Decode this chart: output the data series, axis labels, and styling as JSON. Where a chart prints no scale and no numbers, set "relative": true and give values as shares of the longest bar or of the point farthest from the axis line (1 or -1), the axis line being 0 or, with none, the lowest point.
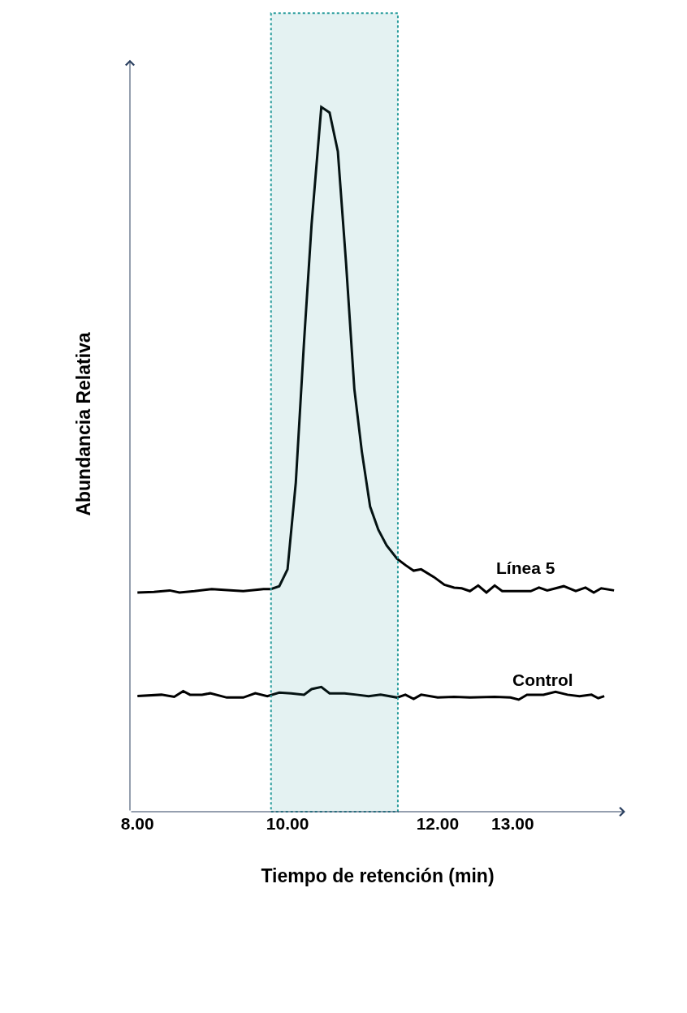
{
  "chart_data": {
    "type": "line",
    "relative": true,
    "xlabel": "Tiempo de retención (min)",
    "ylabel": "Abundancia Relativa",
    "xlim": [
      7.9,
      14.5
    ],
    "xticks": [
      {
        "value": 8,
        "label": "8.00"
      },
      {
        "value": 10,
        "label": "10.00"
      },
      {
        "value": 12,
        "label": "12.00"
      },
      {
        "value": 13,
        "label": "13.00"
      }
    ],
    "series": [
      {
        "name": "Línea 5",
        "color": "#000000",
        "x": [
          8.0,
          8.22,
          8.43,
          8.56,
          8.76,
          8.99,
          9.28,
          9.41,
          9.68,
          9.78,
          9.89,
          10.0,
          10.11,
          10.22,
          10.32,
          10.45,
          10.56,
          10.67,
          10.78,
          10.89,
          10.99,
          11.1,
          11.21,
          11.32,
          11.46,
          11.57,
          11.68,
          11.78,
          11.95,
          12.09,
          12.22,
          12.32,
          12.43,
          12.54,
          12.65,
          12.76,
          12.86,
          13.08,
          13.24,
          13.35,
          13.46,
          13.68,
          13.84,
          13.97,
          14.08,
          14.18,
          14.35
        ],
        "values": [
          0.311,
          0.312,
          0.314,
          0.311,
          0.313,
          0.316,
          0.314,
          0.313,
          0.316,
          0.316,
          0.32,
          0.344,
          0.467,
          0.667,
          0.833,
          1,
          0.992,
          0.937,
          0.778,
          0.6,
          0.511,
          0.433,
          0.4,
          0.378,
          0.359,
          0.35,
          0.342,
          0.344,
          0.333,
          0.322,
          0.318,
          0.317,
          0.313,
          0.321,
          0.311,
          0.321,
          0.313,
          0.313,
          0.313,
          0.318,
          0.314,
          0.32,
          0.313,
          0.318,
          0.311,
          0.317,
          0.314
        ]
      },
      {
        "name": "Control",
        "color": "#000000",
        "x": [
          8.0,
          8.32,
          8.49,
          8.61,
          8.7,
          8.86,
          8.97,
          9.19,
          9.41,
          9.57,
          9.73,
          9.89,
          10.05,
          10.22,
          10.32,
          10.45,
          10.56,
          10.76,
          10.92,
          11.08,
          11.24,
          11.46,
          11.57,
          11.68,
          11.78,
          12.0,
          12.22,
          12.43,
          12.76,
          12.97,
          13.08,
          13.19,
          13.41,
          13.57,
          13.73,
          13.89,
          14.05,
          14.14,
          14.22
        ],
        "values": [
          0.164,
          0.166,
          0.163,
          0.171,
          0.166,
          0.166,
          0.168,
          0.162,
          0.162,
          0.168,
          0.164,
          0.169,
          0.168,
          0.166,
          0.174,
          0.177,
          0.168,
          0.168,
          0.166,
          0.164,
          0.166,
          0.162,
          0.166,
          0.16,
          0.166,
          0.162,
          0.163,
          0.162,
          0.163,
          0.162,
          0.159,
          0.166,
          0.166,
          0.17,
          0.166,
          0.164,
          0.166,
          0.161,
          0.164
        ]
      }
    ],
    "bands": [
      {
        "axis": "x",
        "from": 9.78,
        "to": 11.47,
        "color": "#2a9d9d"
      }
    ],
    "marker": "none",
    "line_style": "solid",
    "legend": false
  }
}
